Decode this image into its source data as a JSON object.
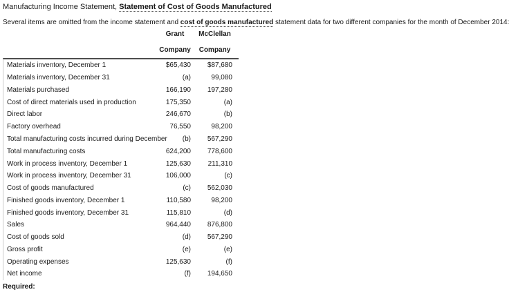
{
  "header": {
    "title_prefix": "Manufacturing Income Statement, ",
    "title_emphasis": "Statement of Cost of Goods Manufactured",
    "intro_prefix": "Several items are omitted from the income statement and ",
    "intro_emphasis": "cost of goods manufactured",
    "intro_suffix": " statement data for two different companies for the month of December 2014:"
  },
  "table": {
    "columns": [
      {
        "line1": "Grant",
        "line2": "Company"
      },
      {
        "line1": "McClellan",
        "line2": "Company"
      }
    ],
    "rows": [
      {
        "label": "Materials inventory, December 1",
        "grant": "$65,430",
        "mcclellan": "$87,680"
      },
      {
        "label": "Materials inventory, December 31",
        "grant": "(a)",
        "mcclellan": "99,080"
      },
      {
        "label": "Materials purchased",
        "grant": "166,190",
        "mcclellan": "197,280"
      },
      {
        "label": "Cost of direct materials used in production",
        "grant": "175,350",
        "mcclellan": "(a)"
      },
      {
        "label": "Direct labor",
        "grant": "246,670",
        "mcclellan": "(b)"
      },
      {
        "label": "Factory overhead",
        "grant": "76,550",
        "mcclellan": "98,200"
      },
      {
        "label": "Total manufacturing costs incurred during December",
        "grant": "(b)",
        "mcclellan": "567,290"
      },
      {
        "label": "Total manufacturing costs",
        "grant": "624,200",
        "mcclellan": "778,600"
      },
      {
        "label": "Work in process inventory, December 1",
        "grant": "125,630",
        "mcclellan": "211,310"
      },
      {
        "label": "Work in process inventory, December 31",
        "grant": "106,000",
        "mcclellan": "(c)"
      },
      {
        "label": "Cost of goods manufactured",
        "grant": "(c)",
        "mcclellan": "562,030"
      },
      {
        "label": "Finished goods inventory, December 1",
        "grant": "110,580",
        "mcclellan": "98,200"
      },
      {
        "label": "Finished goods inventory, December 31",
        "grant": "115,810",
        "mcclellan": "(d)"
      },
      {
        "label": "Sales",
        "grant": "964,440",
        "mcclellan": "876,800"
      },
      {
        "label": "Cost of goods sold",
        "grant": "(d)",
        "mcclellan": "567,290"
      },
      {
        "label": "Gross profit",
        "grant": "(e)",
        "mcclellan": "(e)"
      },
      {
        "label": "Operating expenses",
        "grant": "125,630",
        "mcclellan": "(f)"
      },
      {
        "label": "Net income",
        "grant": "(f)",
        "mcclellan": "194,650"
      }
    ]
  },
  "footer": {
    "required_label": "Required:"
  },
  "colors": {
    "text": "#1a1a1a",
    "header_rule": "#4d4d4d",
    "table_left_border": "#c9c9c9",
    "background": "#ffffff"
  }
}
